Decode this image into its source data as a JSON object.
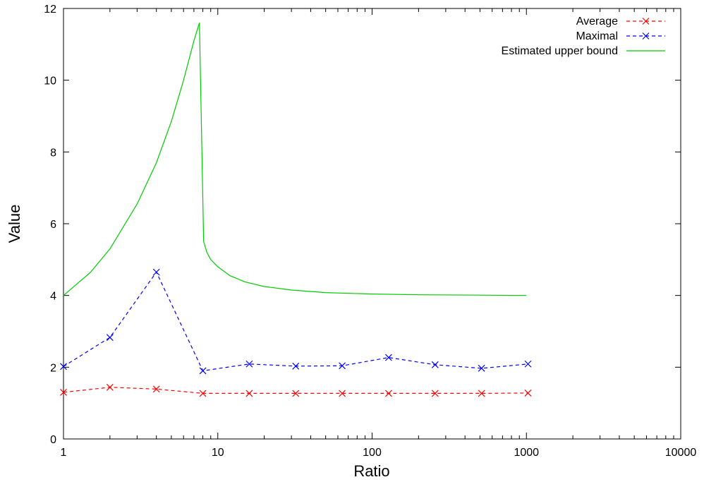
{
  "chart_data": {
    "type": "line",
    "xlabel": "Ratio",
    "ylabel": "Value",
    "xscale": "log",
    "xlim": [
      1,
      10000
    ],
    "ylim": [
      0,
      12
    ],
    "xticks": [
      1,
      10,
      100,
      1000,
      10000
    ],
    "xtick_labels": [
      "1",
      "10",
      "100",
      "1000",
      "10000"
    ],
    "yticks": [
      0,
      2,
      4,
      6,
      8,
      10,
      12
    ],
    "ytick_labels": [
      "0",
      "2",
      "4",
      "6",
      "8",
      "10",
      "12"
    ],
    "grid": false,
    "legend_position": "top-right",
    "series": [
      {
        "name": "Average",
        "color": "#ff0000",
        "style": "dashed",
        "marker": "x",
        "x": [
          1,
          2,
          4,
          8,
          16,
          32,
          64,
          128,
          256,
          512,
          1024
        ],
        "y": [
          1.3,
          1.44,
          1.39,
          1.27,
          1.27,
          1.27,
          1.27,
          1.27,
          1.27,
          1.27,
          1.28
        ]
      },
      {
        "name": "Maximal",
        "color": "#0000ff",
        "style": "dashed",
        "marker": "x",
        "x": [
          1,
          2,
          4,
          8,
          16,
          32,
          64,
          128,
          256,
          512,
          1024
        ],
        "y": [
          2.02,
          2.83,
          4.65,
          1.9,
          2.09,
          2.03,
          2.04,
          2.27,
          2.07,
          1.97,
          2.09
        ]
      },
      {
        "name": "Estimated upper bound",
        "color": "#00cc00",
        "style": "solid",
        "marker": "none",
        "x": [
          1,
          1.5,
          2,
          3,
          4,
          5,
          6,
          7,
          7.6,
          8.1,
          8.5,
          9,
          10,
          12,
          15,
          20,
          30,
          50,
          100,
          200,
          500,
          1000
        ],
        "y": [
          4.0,
          4.65,
          5.3,
          6.55,
          7.7,
          8.85,
          10.0,
          11.1,
          11.6,
          5.5,
          5.2,
          5.0,
          4.8,
          4.55,
          4.38,
          4.25,
          4.15,
          4.08,
          4.04,
          4.02,
          4.01,
          4.0
        ]
      }
    ]
  }
}
